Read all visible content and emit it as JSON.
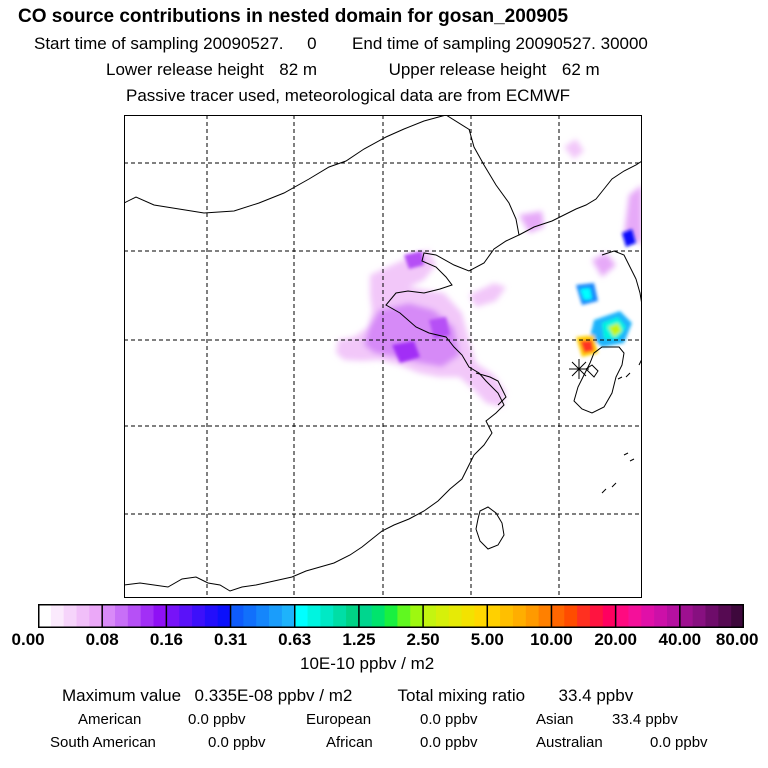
{
  "header": {
    "title": "CO  source contributions in nested domain for gosan_200905",
    "start_label": "Start time of sampling",
    "start_value": "20090527.     0",
    "end_label": "End time of sampling",
    "end_value": "20090527. 30000",
    "lower_label": "Lower release height",
    "lower_value": "82 m",
    "upper_label": "Upper release height",
    "upper_value": "62 m",
    "tracer_note": "Passive tracer used, meteorological data are from ECMWF"
  },
  "colorbar": {
    "tick_labels": [
      "0.00",
      "0.08",
      "0.16",
      "0.31",
      "0.63",
      "1.25",
      "2.50",
      "5.00",
      "10.00",
      "20.00",
      "40.00",
      "80.00"
    ],
    "colors": [
      "#ffffff",
      "#fbeafd",
      "#f6d4fb",
      "#f1bff9",
      "#eba8f8",
      "#d98af8",
      "#c86ff7",
      "#b650f6",
      "#a22ff6",
      "#8f10f5",
      "#7713f8",
      "#5a12f9",
      "#3d10fa",
      "#230efb",
      "#0b10fb",
      "#0f5cfb",
      "#1170fb",
      "#1586fb",
      "#1a9dfb",
      "#1eb3fb",
      "#00ffff",
      "#00f4e0",
      "#00e9c5",
      "#00dea6",
      "#00d386",
      "#00d68e",
      "#00e46d",
      "#19f040",
      "#60f820",
      "#9ef810",
      "#c4f510",
      "#d6f00a",
      "#e6ea06",
      "#f3e200",
      "#ffd800",
      "#ffd000",
      "#ffbf00",
      "#ffae00",
      "#ff9a00",
      "#ff8000",
      "#ff6600",
      "#ff4c00",
      "#ff3020",
      "#ff1440",
      "#ff0060",
      "#ff0a80",
      "#f4109a",
      "#e010a8",
      "#cc10a8",
      "#b510a0",
      "#9e1090",
      "#871080",
      "#6e0c6a",
      "#560a52",
      "#3e083c"
    ],
    "units": "10E-10 ppbv / m2"
  },
  "summary": {
    "max_label": "Maximum value",
    "max_value": "0.335E-08 ppbv / m2",
    "total_label": "Total mixing ratio",
    "total_value": "33.4 ppbv",
    "american_label": "American",
    "american_value": "0.0 ppbv",
    "european_label": "European",
    "european_value": "0.0 ppbv",
    "asian_label": "Asian",
    "asian_value": "33.4 ppbv",
    "south_american_label": "South American",
    "south_american_value": "0.0 ppbv",
    "african_label": "African",
    "african_value": "0.0 ppbv",
    "australian_label": "Australian",
    "australian_value": "0.0 ppbv"
  }
}
